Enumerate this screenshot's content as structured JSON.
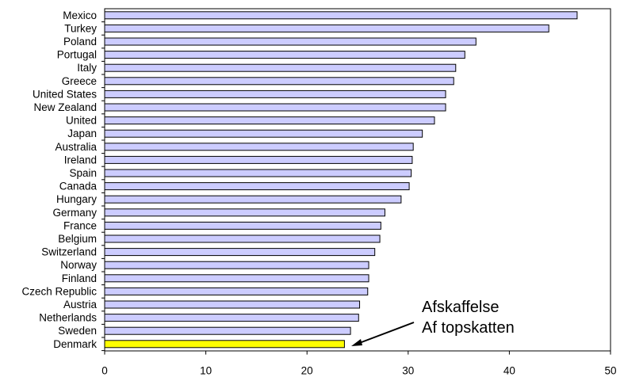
{
  "chart_data": {
    "type": "bar",
    "orientation": "horizontal",
    "categories": [
      "Mexico",
      "Turkey",
      "Poland",
      "Portugal",
      "Italy",
      "Greece",
      "United States",
      "New Zealand",
      "United",
      "Japan",
      "Australia",
      "Ireland",
      "Spain",
      "Canada",
      "Hungary",
      "Germany",
      "France",
      "Belgium",
      "Switzerland",
      "Norway",
      "Finland",
      "Czech Republic",
      "Austria",
      "Netherlands",
      "Sweden",
      "Denmark"
    ],
    "values": [
      46.7,
      43.9,
      36.7,
      35.6,
      34.7,
      34.5,
      33.7,
      33.7,
      32.6,
      31.4,
      30.5,
      30.4,
      30.3,
      30.1,
      29.3,
      27.7,
      27.3,
      27.2,
      26.7,
      26.1,
      26.1,
      26.0,
      25.2,
      25.1,
      24.3,
      23.7
    ],
    "highlight": "Denmark",
    "xlim": [
      0,
      50
    ],
    "xticks": [
      0,
      10,
      20,
      30,
      40,
      50
    ],
    "title": "",
    "xlabel": "",
    "ylabel": "",
    "grid": false,
    "colors": {
      "bar": "#ccccff",
      "highlight": "#ffff00",
      "outline": "#000000"
    },
    "annotation": {
      "lines": [
        "Afskaffelse",
        "Af topskatten"
      ],
      "target": "Denmark"
    }
  }
}
